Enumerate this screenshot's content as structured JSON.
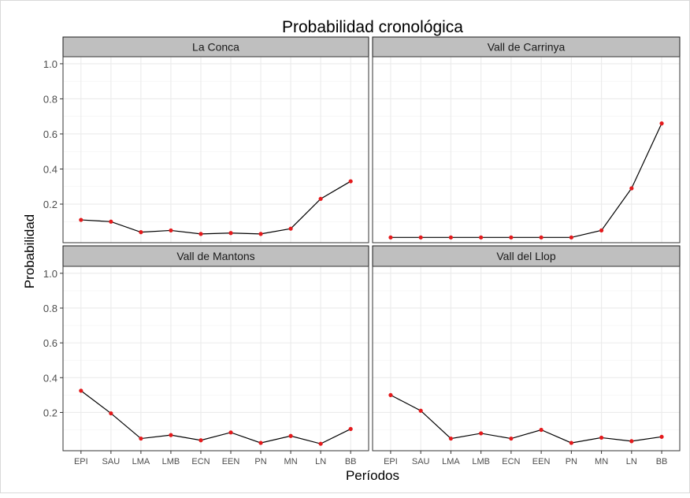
{
  "chart_data": {
    "type": "line",
    "title": "Probabilidad cronológica",
    "xlabel": "Períodos",
    "ylabel": "Probabilidad",
    "categories": [
      "EPI",
      "SAU",
      "LMA",
      "LMB",
      "ECN",
      "EEN",
      "PN",
      "MN",
      "LN",
      "BB"
    ],
    "ylim": [
      -0.02,
      1.04
    ],
    "yticks": [
      0.2,
      0.4,
      0.6,
      0.8,
      1.0
    ],
    "ytick_labels": [
      "0.2",
      "0.4",
      "0.6",
      "0.8",
      "1.0"
    ],
    "grid": true,
    "colors": {
      "line": "#000000",
      "point": "#e41a1c",
      "strip": "#bfbfbf",
      "strip_border": "#1a1a1a",
      "panel_border": "#333333",
      "grid": "#ebebeb"
    },
    "panels": [
      {
        "name": "La Conca",
        "values": [
          0.11,
          0.1,
          0.04,
          0.05,
          0.03,
          0.035,
          0.03,
          0.06,
          0.23,
          0.33
        ]
      },
      {
        "name": "Vall de Carrinya",
        "values": [
          0.01,
          0.01,
          0.01,
          0.01,
          0.01,
          0.01,
          0.01,
          0.05,
          0.29,
          0.66
        ]
      },
      {
        "name": "Vall de Mantons",
        "values": [
          0.325,
          0.195,
          0.05,
          0.07,
          0.04,
          0.085,
          0.025,
          0.065,
          0.02,
          0.105
        ]
      },
      {
        "name": "Vall del Llop",
        "values": [
          0.3,
          0.21,
          0.05,
          0.08,
          0.05,
          0.1,
          0.025,
          0.055,
          0.035,
          0.06
        ]
      }
    ]
  }
}
